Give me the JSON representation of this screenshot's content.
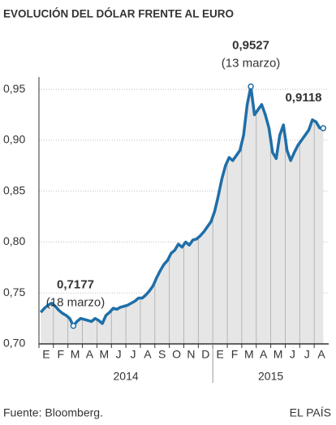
{
  "chart_data": {
    "type": "line",
    "title": "EVOLUCIÓN DEL DÓLAR FRENTE AL EURO",
    "categories": [
      "E",
      null,
      null,
      null,
      "F",
      null,
      null,
      null,
      "M",
      null,
      null,
      null,
      "A",
      null,
      null,
      null,
      "M",
      null,
      null,
      null,
      "J",
      null,
      null,
      null,
      "J",
      null,
      null,
      null,
      "A",
      null,
      null,
      null,
      "S",
      null,
      null,
      null,
      "O",
      null,
      null,
      null,
      "N",
      null,
      null,
      null,
      "D",
      null,
      null,
      null,
      "E",
      null,
      null,
      null,
      "F",
      null,
      null,
      null,
      "M",
      null,
      null,
      null,
      "A",
      null,
      null,
      null,
      "M",
      null,
      null,
      null,
      "J",
      null,
      null,
      null,
      "J",
      null,
      null,
      null,
      "A",
      null,
      null
    ],
    "values": [
      0.731,
      0.735,
      0.738,
      0.74,
      0.737,
      0.733,
      0.73,
      0.728,
      0.725,
      0.7177,
      0.722,
      0.725,
      0.724,
      0.723,
      0.722,
      0.725,
      0.723,
      0.72,
      0.728,
      0.731,
      0.735,
      0.734,
      0.736,
      0.737,
      0.738,
      0.74,
      0.742,
      0.745,
      0.745,
      0.748,
      0.752,
      0.757,
      0.765,
      0.772,
      0.778,
      0.782,
      0.789,
      0.792,
      0.798,
      0.795,
      0.8,
      0.797,
      0.802,
      0.803,
      0.806,
      0.81,
      0.815,
      0.82,
      0.83,
      0.845,
      0.862,
      0.875,
      0.883,
      0.88,
      0.885,
      0.89,
      0.905,
      0.935,
      0.9527,
      0.925,
      0.93,
      0.935,
      0.925,
      0.912,
      0.888,
      0.882,
      0.905,
      0.915,
      0.89,
      0.88,
      0.888,
      0.895,
      0.9,
      0.905,
      0.91,
      0.92,
      0.918,
      0.912,
      0.9118
    ],
    "value_labels": [
      null,
      null,
      null,
      null,
      null,
      null,
      null,
      null,
      null,
      "0,7177",
      null,
      null,
      null,
      null,
      null,
      null,
      null,
      null,
      null,
      null,
      null,
      null,
      null,
      null,
      null,
      null,
      null,
      null,
      null,
      null,
      null,
      null,
      null,
      null,
      null,
      null,
      null,
      null,
      null,
      null,
      null,
      null,
      null,
      null,
      null,
      null,
      null,
      null,
      null,
      null,
      null,
      null,
      null,
      null,
      null,
      null,
      null,
      null,
      "0,9527",
      null,
      null,
      null,
      null,
      null,
      null,
      null,
      null,
      null,
      null,
      null,
      null,
      null,
      null,
      null,
      null,
      null,
      null,
      null,
      "0,9118"
    ],
    "value_notes": [
      null,
      null,
      null,
      null,
      null,
      null,
      null,
      null,
      null,
      "(18 marzo)",
      null,
      null,
      null,
      null,
      null,
      null,
      null,
      null,
      null,
      null,
      null,
      null,
      null,
      null,
      null,
      null,
      null,
      null,
      null,
      null,
      null,
      null,
      null,
      null,
      null,
      null,
      null,
      null,
      null,
      null,
      null,
      null,
      null,
      null,
      null,
      null,
      null,
      null,
      null,
      null,
      null,
      null,
      null,
      null,
      null,
      null,
      null,
      null,
      "(13 marzo)",
      null,
      null,
      null,
      null,
      null,
      null,
      null,
      null,
      null,
      null,
      null,
      null,
      null,
      null,
      null,
      null,
      null,
      null,
      null,
      null
    ],
    "year_labels": [
      "2014",
      "2015"
    ],
    "color": "#1f6ea8",
    "ylim": [
      0.7,
      0.962
    ],
    "yticks": [
      {
        "value": 0.7,
        "label": "0,70"
      },
      {
        "value": 0.75,
        "label": "0,75"
      },
      {
        "value": 0.8,
        "label": "0,80"
      },
      {
        "value": 0.85,
        "label": "0,85"
      },
      {
        "value": 0.9,
        "label": "0,90"
      },
      {
        "value": 0.95,
        "label": "0,95"
      }
    ],
    "grid": true,
    "source": "Fuente: Bloomberg.",
    "brand": "EL PAÍS"
  }
}
